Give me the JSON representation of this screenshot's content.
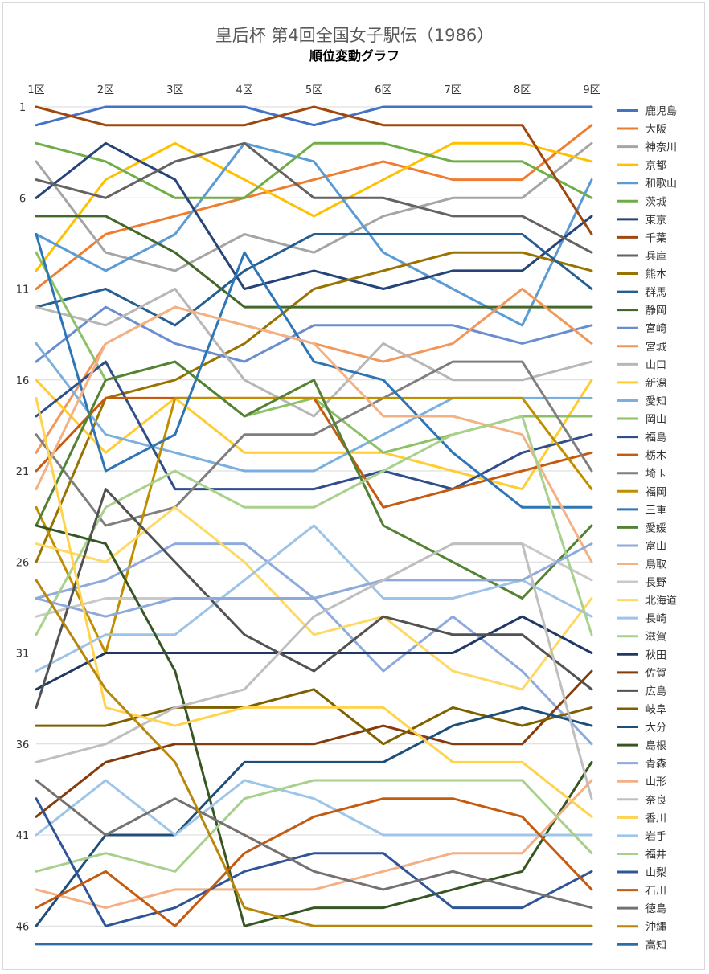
{
  "chart_data": {
    "type": "line",
    "title": "皇后杯 第4回全国女子駅伝（1986）",
    "subtitle": "順位変動グラフ",
    "categories": [
      "1区",
      "2区",
      "3区",
      "4区",
      "5区",
      "6区",
      "7区",
      "8区",
      "9区"
    ],
    "y_ticks": [
      1,
      6,
      11,
      16,
      21,
      26,
      31,
      36,
      41,
      46
    ],
    "ylim": [
      1,
      47
    ],
    "y_reversed": true,
    "grid": true,
    "legend_position": "right",
    "series": [
      {
        "name": "鹿児島",
        "color": "#4472c4",
        "values": [
          2,
          1,
          1,
          1,
          2,
          1,
          1,
          1,
          1
        ]
      },
      {
        "name": "大阪",
        "color": "#ed7d31",
        "values": [
          11,
          8,
          7,
          6,
          5,
          4,
          5,
          5,
          2
        ]
      },
      {
        "name": "神奈川",
        "color": "#a5a5a5",
        "values": [
          4,
          9,
          10,
          8,
          9,
          7,
          6,
          6,
          3
        ]
      },
      {
        "name": "京都",
        "color": "#ffc000",
        "values": [
          10,
          5,
          3,
          5,
          7,
          5,
          3,
          3,
          4
        ]
      },
      {
        "name": "和歌山",
        "color": "#5b9bd5",
        "values": [
          8,
          10,
          8,
          3,
          4,
          9,
          11,
          13,
          5
        ]
      },
      {
        "name": "茨城",
        "color": "#70ad47",
        "values": [
          3,
          4,
          6,
          6,
          3,
          3,
          4,
          4,
          6
        ]
      },
      {
        "name": "東京",
        "color": "#264478",
        "values": [
          6,
          3,
          5,
          11,
          10,
          11,
          10,
          10,
          7
        ]
      },
      {
        "name": "千葉",
        "color": "#9e480e",
        "values": [
          1,
          2,
          2,
          2,
          1,
          2,
          2,
          2,
          8
        ]
      },
      {
        "name": "兵庫",
        "color": "#636363",
        "values": [
          5,
          6,
          4,
          3,
          6,
          6,
          7,
          7,
          9
        ]
      },
      {
        "name": "熊本",
        "color": "#997300",
        "values": [
          26,
          17,
          16,
          14,
          11,
          10,
          9,
          9,
          10
        ]
      },
      {
        "name": "群馬",
        "color": "#255e91",
        "values": [
          12,
          11,
          13,
          10,
          8,
          8,
          8,
          8,
          11
        ]
      },
      {
        "name": "静岡",
        "color": "#43682b",
        "values": [
          7,
          7,
          9,
          12,
          12,
          12,
          12,
          12,
          12
        ]
      },
      {
        "name": "宮崎",
        "color": "#698ed0",
        "values": [
          15,
          12,
          14,
          15,
          13,
          13,
          13,
          14,
          13
        ]
      },
      {
        "name": "宮城",
        "color": "#f1975a",
        "values": [
          20,
          14,
          12,
          13,
          14,
          15,
          14,
          11,
          14
        ]
      },
      {
        "name": "山口",
        "color": "#b7b7b7",
        "values": [
          12,
          13,
          11,
          16,
          18,
          14,
          16,
          16,
          15
        ]
      },
      {
        "name": "新潟",
        "color": "#ffcd33",
        "values": [
          16,
          20,
          17,
          20,
          20,
          20,
          21,
          22,
          16
        ]
      },
      {
        "name": "愛知",
        "color": "#7cafdd",
        "values": [
          14,
          19,
          20,
          21,
          21,
          19,
          17,
          17,
          17
        ]
      },
      {
        "name": "岡山",
        "color": "#8cc168",
        "values": [
          9,
          16,
          15,
          18,
          17,
          20,
          19,
          18,
          18
        ]
      },
      {
        "name": "福島",
        "color": "#2f4e8a",
        "values": [
          18,
          15,
          22,
          22,
          22,
          21,
          22,
          20,
          19
        ]
      },
      {
        "name": "栃木",
        "color": "#c55a11",
        "values": [
          21,
          17,
          17,
          17,
          17,
          23,
          22,
          21,
          20
        ]
      },
      {
        "name": "埼玉",
        "color": "#7f7f7f",
        "values": [
          19,
          24,
          23,
          19,
          19,
          17,
          15,
          15,
          21
        ]
      },
      {
        "name": "福岡",
        "color": "#bf8f00",
        "values": [
          23,
          31,
          17,
          17,
          17,
          17,
          17,
          17,
          22
        ]
      },
      {
        "name": "三重",
        "color": "#2e75b6",
        "values": [
          8,
          21,
          19,
          9,
          15,
          16,
          20,
          23,
          23
        ]
      },
      {
        "name": "愛媛",
        "color": "#548235",
        "values": [
          24,
          16,
          15,
          18,
          16,
          24,
          26,
          28,
          24
        ]
      },
      {
        "name": "富山",
        "color": "#8faadc",
        "values": [
          28,
          27,
          25,
          25,
          28,
          32,
          29,
          32,
          36
        ]
      },
      {
        "name": "鳥取",
        "color": "#f4b183",
        "values": [
          22,
          14,
          12,
          13,
          14,
          18,
          18,
          19,
          26
        ]
      },
      {
        "name": "長野",
        "color": "#c9c9c9",
        "values": [
          29,
          28,
          28,
          28,
          28,
          27,
          25,
          25,
          27
        ]
      },
      {
        "name": "北海道",
        "color": "#ffd966",
        "values": [
          25,
          26,
          23,
          26,
          30,
          29,
          32,
          33,
          28
        ]
      },
      {
        "name": "長崎",
        "color": "#9dc3e6",
        "values": [
          32,
          30,
          30,
          27,
          24,
          28,
          28,
          27,
          29
        ]
      },
      {
        "name": "滋賀",
        "color": "#a9d18e",
        "values": [
          30,
          23,
          21,
          23,
          23,
          21,
          19,
          18,
          30
        ]
      },
      {
        "name": "秋田",
        "color": "#203864",
        "values": [
          33,
          31,
          31,
          31,
          31,
          31,
          31,
          29,
          31
        ]
      },
      {
        "name": "佐賀",
        "color": "#843c0c",
        "values": [
          40,
          37,
          36,
          36,
          36,
          35,
          36,
          36,
          32
        ]
      },
      {
        "name": "広島",
        "color": "#525252",
        "values": [
          34,
          22,
          26,
          30,
          32,
          29,
          30,
          30,
          33
        ]
      },
      {
        "name": "岐阜",
        "color": "#7f6000",
        "values": [
          35,
          35,
          34,
          34,
          33,
          36,
          34,
          35,
          34
        ]
      },
      {
        "name": "大分",
        "color": "#1f4e79",
        "values": [
          46,
          41,
          41,
          37,
          37,
          37,
          35,
          34,
          35
        ]
      },
      {
        "name": "島根",
        "color": "#375623",
        "values": [
          24,
          25,
          32,
          46,
          45,
          45,
          44,
          43,
          37
        ]
      },
      {
        "name": "青森",
        "color": "#8eaadb",
        "values": [
          28,
          29,
          28,
          28,
          28,
          27,
          27,
          27,
          25
        ]
      },
      {
        "name": "山形",
        "color": "#f4b084",
        "values": [
          44,
          45,
          44,
          44,
          44,
          43,
          42,
          42,
          38
        ]
      },
      {
        "name": "奈良",
        "color": "#bfbfbf",
        "values": [
          37,
          36,
          34,
          33,
          29,
          27,
          25,
          25,
          39
        ]
      },
      {
        "name": "香川",
        "color": "#ffd34d",
        "values": [
          17,
          34,
          35,
          34,
          34,
          34,
          37,
          37,
          40
        ]
      },
      {
        "name": "岩手",
        "color": "#9fc5e8",
        "values": [
          41,
          38,
          41,
          38,
          39,
          41,
          41,
          41,
          41
        ]
      },
      {
        "name": "福井",
        "color": "#a8d08d",
        "values": [
          43,
          42,
          43,
          39,
          38,
          38,
          38,
          38,
          42
        ]
      },
      {
        "name": "山梨",
        "color": "#2f5597",
        "values": [
          39,
          46,
          45,
          43,
          42,
          42,
          45,
          45,
          43
        ]
      },
      {
        "name": "石川",
        "color": "#c55a11",
        "values": [
          45,
          43,
          46,
          42,
          40,
          39,
          39,
          40,
          44
        ]
      },
      {
        "name": "徳島",
        "color": "#767171",
        "values": [
          38,
          41,
          39,
          41,
          43,
          44,
          43,
          44,
          45
        ]
      },
      {
        "name": "沖縄",
        "color": "#b8860b",
        "values": [
          27,
          33,
          37,
          45,
          46,
          46,
          46,
          46,
          46
        ]
      },
      {
        "name": "高知",
        "color": "#2e6ca4",
        "values": [
          47,
          47,
          47,
          47,
          47,
          47,
          47,
          47,
          47
        ]
      }
    ]
  }
}
